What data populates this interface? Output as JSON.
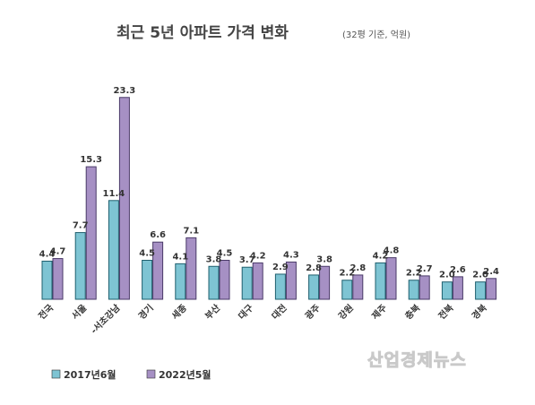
{
  "chart_data": {
    "type": "bar",
    "title": "최근 5년 아파트 가격 변화",
    "subtitle": "(32평 기준, 억원)",
    "categories": [
      "전국",
      "서울",
      "-서초강남",
      "경기",
      "세종",
      "부산",
      "대구",
      "대전",
      "광주",
      "강원",
      "제주",
      "충북",
      "전북",
      "경북"
    ],
    "series": [
      {
        "name": "2017년6월",
        "color": "#7ec4d3",
        "values": [
          4.4,
          7.7,
          11.4,
          4.5,
          4.1,
          3.8,
          3.7,
          2.9,
          2.8,
          2.2,
          4.2,
          2.2,
          2.0,
          2.0
        ],
        "labels": [
          "4.4",
          "7.7",
          "11.4",
          "4.5",
          "4.1",
          "3.8",
          "3.7",
          "2.9",
          "2.8",
          "2.2",
          "4.2",
          "2.2",
          "2.0",
          "2.0"
        ]
      },
      {
        "name": "2022년5월",
        "color": "#a690c4",
        "values": [
          4.7,
          15.3,
          23.3,
          6.6,
          7.1,
          4.5,
          4.2,
          4.3,
          3.8,
          2.8,
          4.8,
          2.7,
          2.6,
          2.4
        ],
        "labels": [
          "4.7",
          "15.3",
          "23.3",
          "6.6",
          "7.1",
          "4.5",
          "4.2",
          "4.3",
          "3.8",
          "2.8",
          "4.8",
          "2.7",
          "2.6",
          "2.4"
        ]
      }
    ],
    "ylim": [
      0,
      24
    ],
    "grid": false,
    "legend_position": "bottom-left",
    "watermark": "산업경제뉴스"
  }
}
